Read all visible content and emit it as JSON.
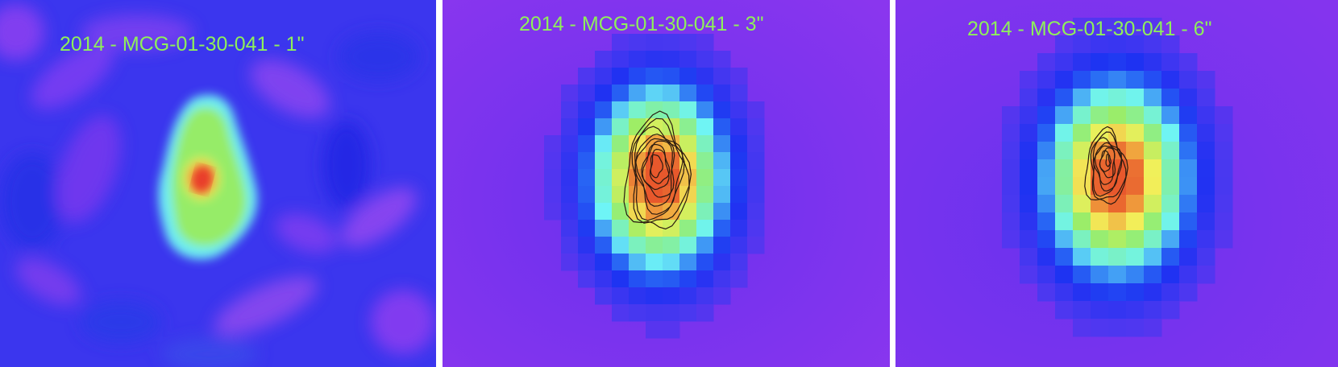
{
  "panels": [
    {
      "title": "2014 - MCG-01-30-041 - 1\"",
      "resolution": "1\"",
      "contours": false
    },
    {
      "title": "2014 - MCG-01-30-041 - 3\"",
      "resolution": "3\"",
      "contours": true
    },
    {
      "title": "2014 - MCG-01-30-041 - 6\"",
      "resolution": "6\"",
      "contours": true
    }
  ],
  "colors": {
    "title_text": "#8ef05a",
    "background_blue": "#2f3cf0",
    "background_purple": "#8a30ee",
    "halo_cyan": "#6ef4f6",
    "mid_green": "#98ee66",
    "yellow": "#f2f05a",
    "core_red": "#e8422c",
    "contour": "#2a1a10",
    "separator": "#ffffff"
  }
}
